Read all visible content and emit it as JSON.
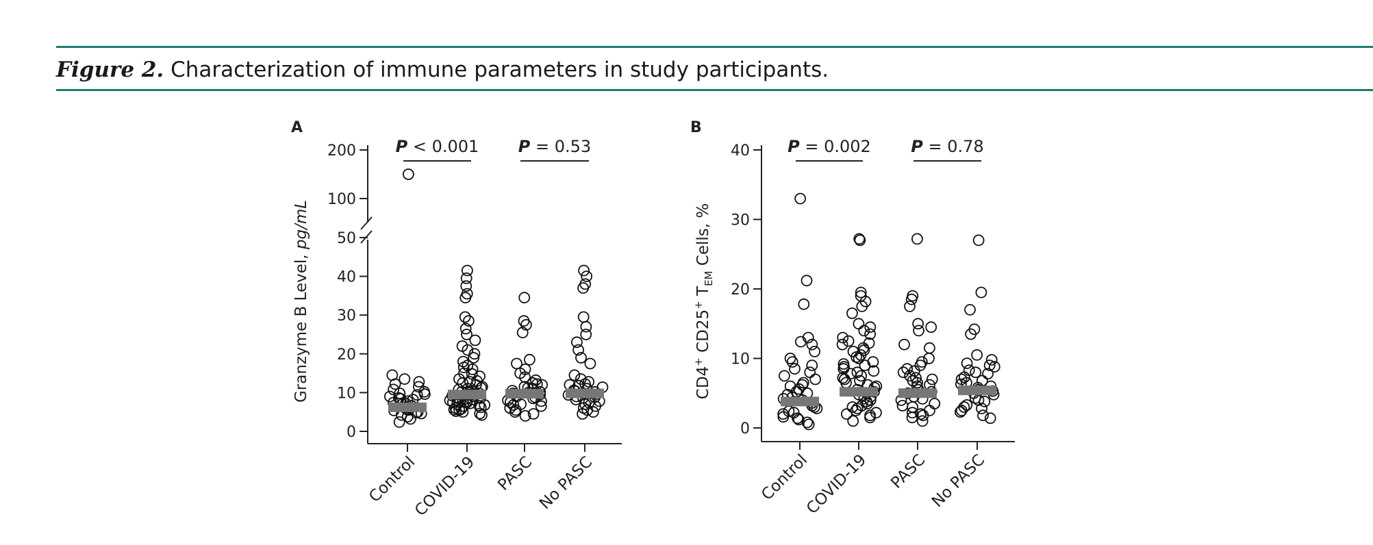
{
  "caption": {
    "figure_label": "Figure 2.",
    "text": "Characterization of immune parameters in study participants."
  },
  "colors": {
    "rule": "#1e7b72",
    "median_bar": "#777777",
    "point": "#111111"
  },
  "chart_data": [
    {
      "panel": "A",
      "type": "scatter",
      "categories": [
        "Control",
        "COVID-19",
        "PASC",
        "No PASC"
      ],
      "ylabel_main": "Granzyme B Level, ",
      "ylabel_unit": "pg/mL",
      "yticks_lower": [
        "0",
        "10",
        "20",
        "30",
        "40",
        "50"
      ],
      "yticks_upper": [
        "100",
        "200"
      ],
      "axis_break": "between 50 and 100",
      "ylim": [
        0,
        200
      ],
      "medians": [
        6.2,
        9.5,
        9.7,
        9.8
      ],
      "comparisons": [
        {
          "groups": [
            "Control",
            "COVID-19"
          ],
          "p_prefix": "P",
          "p_rest": " < 0.001"
        },
        {
          "groups": [
            "PASC",
            "No PASC"
          ],
          "p_prefix": "P",
          "p_rest": " = 0.53"
        }
      ],
      "points": [
        [
          150,
          14.5,
          13.5,
          12.8,
          12.2,
          11.5,
          10.8,
          10.2,
          9.8,
          9.4,
          9.0,
          8.6,
          8.2,
          7.8,
          7.4,
          7.0,
          6.6,
          6.2,
          5.8,
          5.4,
          5.0,
          4.6,
          4.2,
          3.8,
          3.2,
          2.4,
          6.0,
          5.5,
          7.2,
          8.4,
          9.6,
          4.8
        ],
        [
          41.5,
          39.5,
          37.5,
          35.5,
          34.5,
          29.5,
          28.5,
          26.5,
          25.0,
          23.5,
          22.0,
          21.0,
          20.0,
          19.0,
          18.0,
          17.0,
          16.0,
          15.0,
          14.2,
          13.5,
          13.0,
          12.5,
          12.0,
          11.5,
          11.0,
          10.5,
          10.2,
          9.8,
          9.5,
          9.2,
          9.0,
          8.8,
          8.5,
          8.2,
          8.0,
          7.8,
          7.5,
          7.2,
          7.0,
          6.8,
          6.5,
          6.2,
          6.0,
          5.8,
          5.5,
          5.2,
          5.0,
          4.6,
          4.2,
          10.8,
          11.2,
          9.6,
          8.6,
          7.6,
          6.6,
          5.6,
          9.4,
          10.0,
          8.4,
          7.4,
          12.8,
          14.8,
          16.5
        ],
        [
          34.5,
          28.5,
          27.5,
          25.5,
          18.5,
          17.5,
          16.0,
          15.0,
          14.0,
          13.2,
          12.5,
          12.0,
          11.5,
          11.0,
          10.5,
          10.0,
          9.5,
          9.0,
          8.5,
          8.0,
          7.5,
          7.0,
          6.5,
          6.0,
          5.5,
          5.0,
          4.5,
          4.0,
          10.2,
          9.8,
          8.8,
          7.8,
          6.8,
          11.2,
          12.2
        ],
        [
          41.5,
          40.0,
          38.0,
          37.0,
          29.5,
          27.0,
          25.0,
          23.0,
          21.0,
          19.0,
          17.5,
          14.5,
          13.5,
          12.8,
          12.2,
          11.8,
          11.4,
          11.0,
          10.6,
          10.2,
          9.8,
          9.4,
          9.0,
          8.6,
          8.2,
          7.8,
          7.4,
          7.0,
          6.5,
          6.0,
          5.5,
          5.0,
          4.5,
          10.4,
          9.6,
          8.8,
          12.0
        ]
      ]
    },
    {
      "panel": "B",
      "type": "scatter",
      "categories": [
        "Control",
        "COVID-19",
        "PASC",
        "No PASC"
      ],
      "ylabel_main": "CD4",
      "ylabel_sup1": "+",
      "ylabel_mid": " CD25",
      "ylabel_sup2": "+",
      "ylabel_t": " T",
      "ylabel_sub": "EM",
      "ylabel_end": " Cells, %",
      "yticks": [
        "0",
        "10",
        "20",
        "30",
        "40"
      ],
      "ylim": [
        0,
        40
      ],
      "medians": [
        3.8,
        5.2,
        5.0,
        5.4
      ],
      "comparisons": [
        {
          "groups": [
            "Control",
            "COVID-19"
          ],
          "p_prefix": "P",
          "p_rest": " = 0.002"
        },
        {
          "groups": [
            "PASC",
            "No PASC"
          ],
          "p_prefix": "P",
          "p_rest": " = 0.78"
        }
      ],
      "points": [
        [
          33.0,
          21.2,
          17.8,
          13.0,
          12.4,
          12.0,
          11.0,
          10.0,
          9.5,
          9.0,
          8.5,
          8.0,
          7.5,
          7.0,
          6.5,
          6.0,
          5.6,
          5.2,
          4.8,
          4.4,
          4.0,
          3.6,
          3.2,
          2.8,
          2.4,
          2.0,
          1.6,
          1.2,
          0.8,
          0.5,
          3.0,
          4.2,
          5.0,
          6.2,
          2.2,
          1.4
        ],
        [
          27.2,
          27.0,
          19.5,
          19.0,
          18.2,
          17.5,
          16.5,
          15.0,
          14.5,
          14.0,
          13.5,
          13.0,
          12.5,
          12.0,
          11.5,
          11.0,
          10.5,
          10.0,
          9.5,
          9.0,
          8.5,
          8.0,
          7.5,
          7.0,
          6.5,
          6.0,
          5.5,
          5.0,
          4.5,
          4.0,
          3.5,
          3.0,
          2.5,
          2.0,
          1.5,
          1.0,
          9.2,
          8.2,
          7.2,
          6.2,
          5.2,
          4.2,
          3.2,
          2.2,
          8.8,
          7.8,
          6.8,
          5.8,
          4.8,
          3.8,
          2.8,
          1.8,
          10.2,
          11.2,
          12.2
        ],
        [
          27.2,
          19.0,
          18.5,
          17.5,
          15.0,
          14.5,
          14.0,
          12.0,
          11.5,
          10.0,
          9.5,
          9.0,
          8.5,
          8.0,
          7.5,
          7.0,
          6.5,
          6.0,
          5.5,
          5.0,
          4.5,
          4.0,
          3.5,
          3.0,
          2.5,
          2.0,
          1.5,
          1.0,
          8.2,
          7.2,
          6.2,
          5.2,
          4.2,
          3.2,
          2.2,
          1.8,
          6.8
        ],
        [
          27.0,
          19.5,
          17.0,
          14.2,
          13.5,
          10.5,
          9.8,
          9.3,
          8.8,
          8.3,
          7.8,
          7.3,
          6.8,
          6.3,
          5.8,
          5.3,
          4.8,
          4.3,
          3.8,
          3.3,
          2.8,
          2.3,
          1.8,
          1.4,
          9.0,
          8.0,
          7.0,
          6.0,
          5.0,
          4.0,
          3.0,
          2.5,
          6.5,
          5.5
        ]
      ]
    }
  ],
  "panel_letters": {
    "a": "A",
    "b": "B"
  }
}
